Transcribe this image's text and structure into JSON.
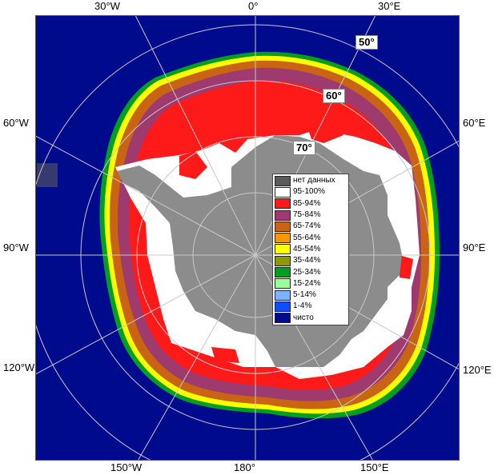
{
  "map": {
    "top_labels": [
      "30°W",
      "0°",
      "30°E"
    ],
    "left_labels": [
      "60°W",
      "90°W",
      "120°W"
    ],
    "right_labels": [
      "60°E",
      "90°E",
      "120°E"
    ],
    "bottom_labels": [
      "150°W",
      "180°",
      "150°E"
    ],
    "latitude_labels": [
      "50°",
      "60°",
      "70°"
    ]
  },
  "legend": {
    "items": [
      {
        "label": "нет данных",
        "color": "#5a5a5a"
      },
      {
        "label": "95-100%",
        "color": "#ffffff"
      },
      {
        "label": "85-94%",
        "color": "#ff1a1a"
      },
      {
        "label": "75-84%",
        "color": "#9e3a6e"
      },
      {
        "label": "65-74%",
        "color": "#c86414"
      },
      {
        "label": "55-64%",
        "color": "#ff9600"
      },
      {
        "label": "45-54%",
        "color": "#ffff00"
      },
      {
        "label": "35-44%",
        "color": "#8c9a00"
      },
      {
        "label": "25-34%",
        "color": "#00a01e"
      },
      {
        "label": "15-24%",
        "color": "#96ff96"
      },
      {
        "label": "5-14%",
        "color": "#7ab4ff"
      },
      {
        "label": "1-4%",
        "color": "#0a50ff"
      },
      {
        "label": "чисто",
        "color": "#000a8c"
      }
    ]
  },
  "colors": {
    "ocean": "#000a8c",
    "land": "#8c8c8c",
    "no_data": "#5a5a5a",
    "grid": "#c8c8c8"
  }
}
